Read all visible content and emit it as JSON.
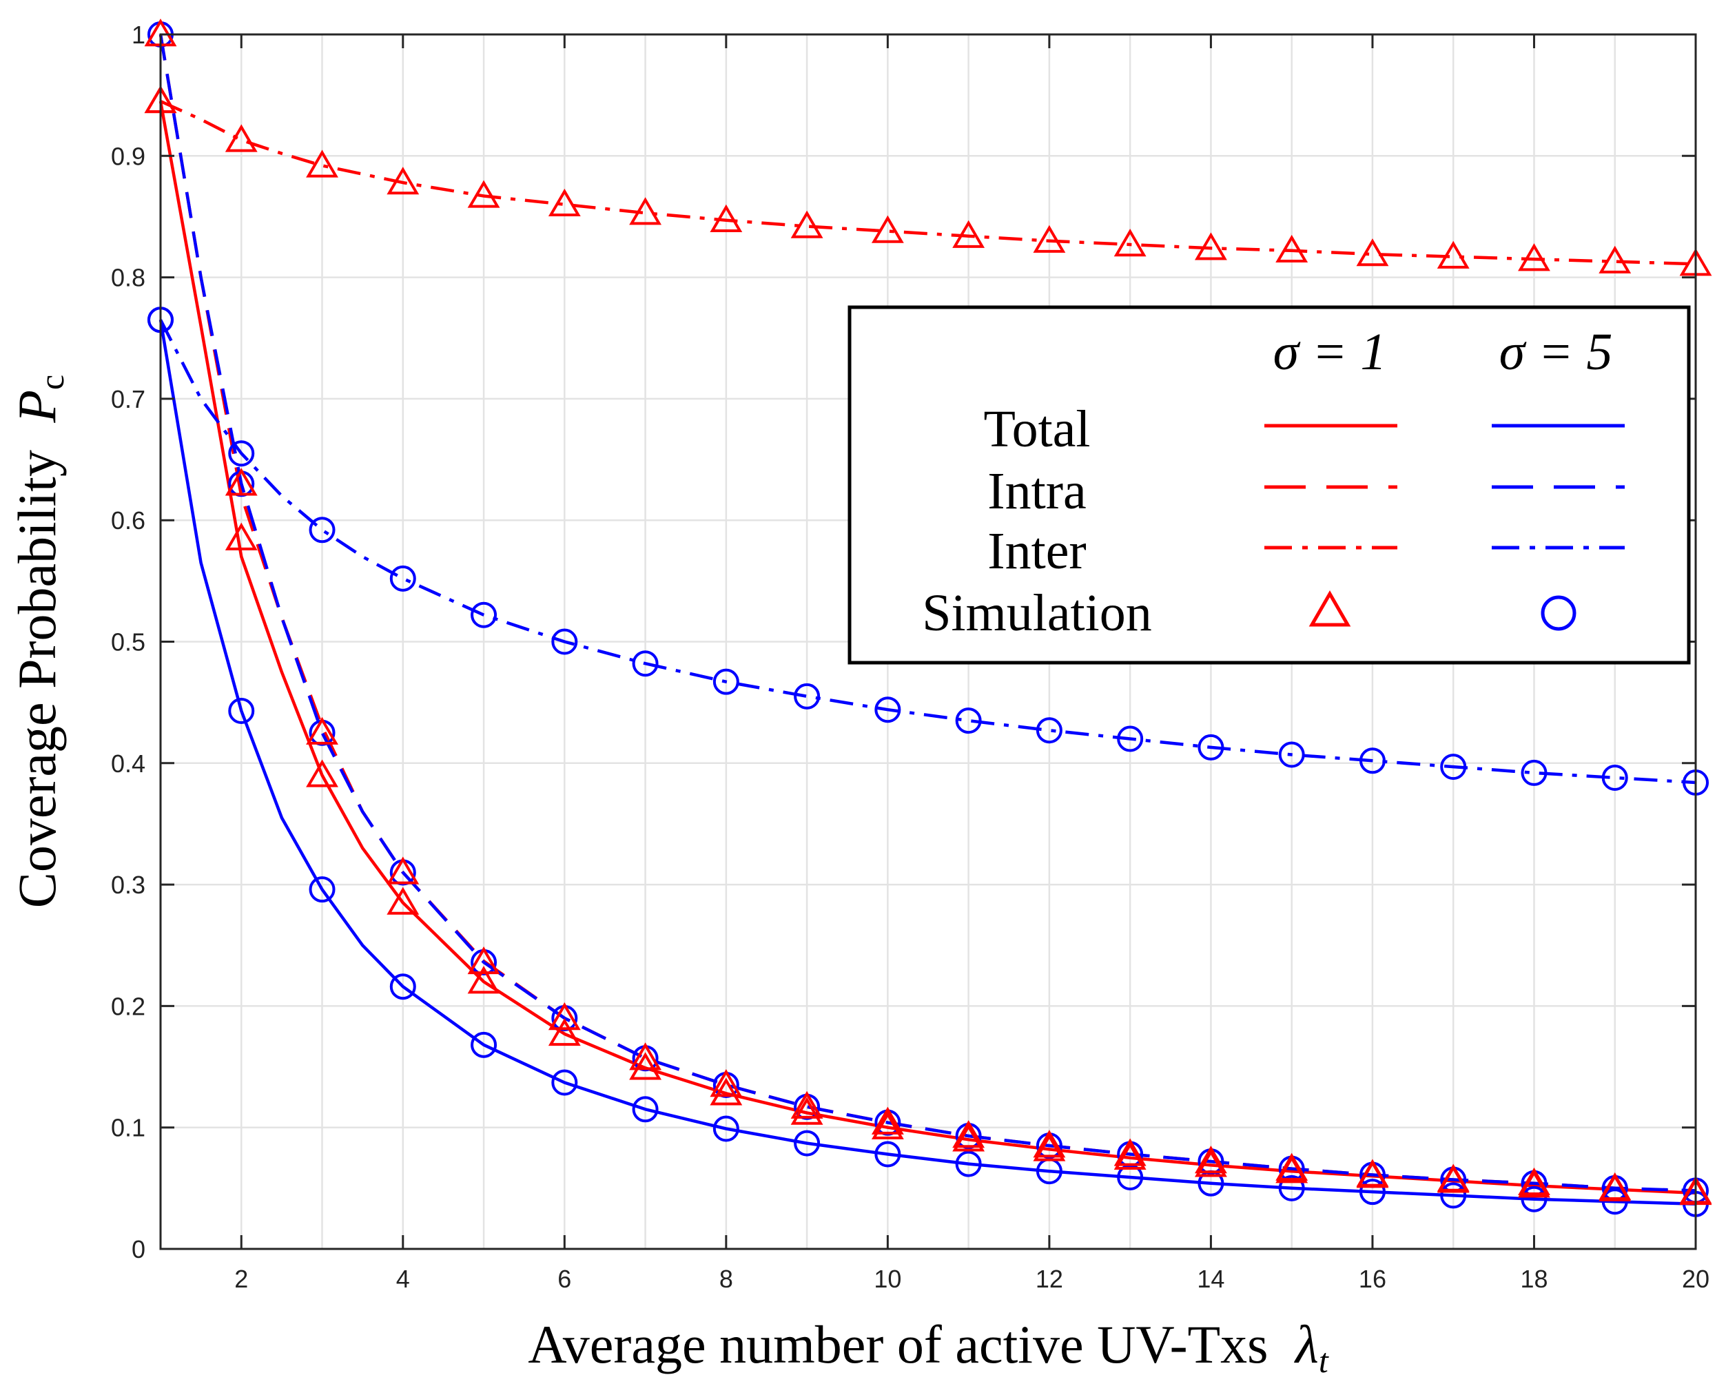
{
  "chart_data": {
    "type": "line",
    "xlabel": "Average number of active UV-Txs",
    "xlabel_symbol": "λ",
    "xlabel_subscript": "t",
    "ylabel": "Coverage Probability",
    "ylabel_symbol": "P",
    "ylabel_subscript": "c",
    "xlim": [
      1,
      20
    ],
    "ylim": [
      0,
      1
    ],
    "x_ticks": [
      2,
      4,
      6,
      8,
      10,
      12,
      14,
      16,
      18,
      20
    ],
    "x_tick_labels": [
      "2",
      "4",
      "6",
      "8",
      "10",
      "12",
      "14",
      "16",
      "18",
      "20"
    ],
    "y_ticks": [
      0,
      0.1,
      0.2,
      0.3,
      0.4,
      0.5,
      0.6,
      0.7,
      0.8,
      0.9,
      1
    ],
    "y_tick_labels": [
      "0",
      "0.1",
      "0.2",
      "0.3",
      "0.4",
      "0.5",
      "0.6",
      "0.7",
      "0.8",
      "0.9",
      "1"
    ],
    "grid": true,
    "legend_position": "center-right",
    "legend": {
      "col_headers": [
        "σ = 1",
        "σ = 5"
      ],
      "rows": [
        "Total",
        "Intra",
        "Inter",
        "Simulation"
      ]
    },
    "colors": {
      "sigma1": "#ff0000",
      "sigma5": "#0000ff"
    },
    "x_curve": [
      1,
      1.5,
      2,
      2.5,
      3,
      3.5,
      4,
      5,
      6,
      7,
      8,
      9,
      10,
      11,
      12,
      13,
      14,
      15,
      16,
      17,
      18,
      19,
      20
    ],
    "x_markers": [
      1,
      2,
      3,
      4,
      5,
      6,
      7,
      8,
      9,
      10,
      11,
      12,
      13,
      14,
      15,
      16,
      17,
      18,
      19,
      20
    ],
    "series": [
      {
        "name": "Total σ=1",
        "style": "solid",
        "color": "sigma1",
        "values": [
          0.945,
          0.76,
          0.57,
          0.475,
          0.39,
          0.33,
          0.285,
          0.22,
          0.177,
          0.149,
          0.128,
          0.112,
          0.1,
          0.09,
          0.082,
          0.075,
          0.069,
          0.064,
          0.06,
          0.056,
          0.052,
          0.049,
          0.046
        ]
      },
      {
        "name": "Intra σ=1",
        "style": "dashed",
        "color": "sigma1",
        "values": [
          1.0,
          0.8,
          0.62,
          0.52,
          0.43,
          0.36,
          0.31,
          0.237,
          0.19,
          0.157,
          0.135,
          0.117,
          0.104,
          0.093,
          0.085,
          0.078,
          0.072,
          0.066,
          0.061,
          0.057,
          0.054,
          0.05,
          0.047
        ]
      },
      {
        "name": "Inter σ=1",
        "style": "dashdot",
        "color": "sigma1",
        "values": [
          0.945,
          0.93,
          0.913,
          0.902,
          0.892,
          0.885,
          0.878,
          0.867,
          0.86,
          0.853,
          0.847,
          0.842,
          0.838,
          0.834,
          0.83,
          0.827,
          0.824,
          0.822,
          0.819,
          0.817,
          0.815,
          0.813,
          0.811
        ]
      },
      {
        "name": "Total σ=5",
        "style": "solid",
        "color": "sigma5",
        "values": [
          0.765,
          0.565,
          0.443,
          0.355,
          0.296,
          0.25,
          0.216,
          0.168,
          0.137,
          0.115,
          0.099,
          0.087,
          0.078,
          0.07,
          0.064,
          0.059,
          0.054,
          0.05,
          0.047,
          0.044,
          0.041,
          0.039,
          0.037
        ]
      },
      {
        "name": "Intra σ=5",
        "style": "dashed",
        "color": "sigma5",
        "values": [
          1.0,
          0.8,
          0.63,
          0.52,
          0.425,
          0.36,
          0.31,
          0.236,
          0.19,
          0.157,
          0.135,
          0.117,
          0.104,
          0.093,
          0.085,
          0.078,
          0.072,
          0.066,
          0.061,
          0.057,
          0.054,
          0.05,
          0.048
        ]
      },
      {
        "name": "Inter σ=5",
        "style": "dashdot",
        "color": "sigma5",
        "values": [
          0.765,
          0.7,
          0.655,
          0.62,
          0.592,
          0.57,
          0.552,
          0.522,
          0.5,
          0.482,
          0.467,
          0.455,
          0.444,
          0.435,
          0.427,
          0.42,
          0.413,
          0.407,
          0.402,
          0.397,
          0.392,
          0.388,
          0.384
        ]
      }
    ],
    "sim_sigma1": [
      [
        1.0,
        0.63,
        0.425,
        0.31,
        0.236,
        0.19,
        0.157,
        0.135,
        0.117,
        0.104,
        0.093,
        0.085,
        0.078,
        0.072,
        0.066,
        0.061,
        0.057,
        0.054,
        0.05,
        0.047
      ],
      [
        0.945,
        0.585,
        0.39,
        0.285,
        0.22,
        0.177,
        0.149,
        0.128,
        0.112,
        0.1,
        0.09,
        0.082,
        0.075,
        0.069,
        0.064,
        0.06,
        0.056,
        0.052,
        0.049,
        0.046
      ],
      [
        0.945,
        0.913,
        0.892,
        0.878,
        0.867,
        0.86,
        0.853,
        0.847,
        0.842,
        0.838,
        0.834,
        0.83,
        0.827,
        0.824,
        0.822,
        0.819,
        0.817,
        0.815,
        0.813,
        0.811
      ]
    ],
    "sim_sigma5": [
      [
        1.0,
        0.63,
        0.425,
        0.31,
        0.236,
        0.19,
        0.157,
        0.135,
        0.117,
        0.104,
        0.093,
        0.085,
        0.078,
        0.072,
        0.066,
        0.061,
        0.057,
        0.054,
        0.05,
        0.048
      ],
      [
        0.765,
        0.443,
        0.296,
        0.216,
        0.168,
        0.137,
        0.115,
        0.099,
        0.087,
        0.078,
        0.07,
        0.064,
        0.059,
        0.054,
        0.05,
        0.047,
        0.044,
        0.041,
        0.039,
        0.037
      ],
      [
        0.765,
        0.655,
        0.592,
        0.552,
        0.522,
        0.5,
        0.482,
        0.467,
        0.455,
        0.444,
        0.435,
        0.427,
        0.42,
        0.413,
        0.407,
        0.402,
        0.397,
        0.392,
        0.388,
        0.384
      ]
    ]
  }
}
